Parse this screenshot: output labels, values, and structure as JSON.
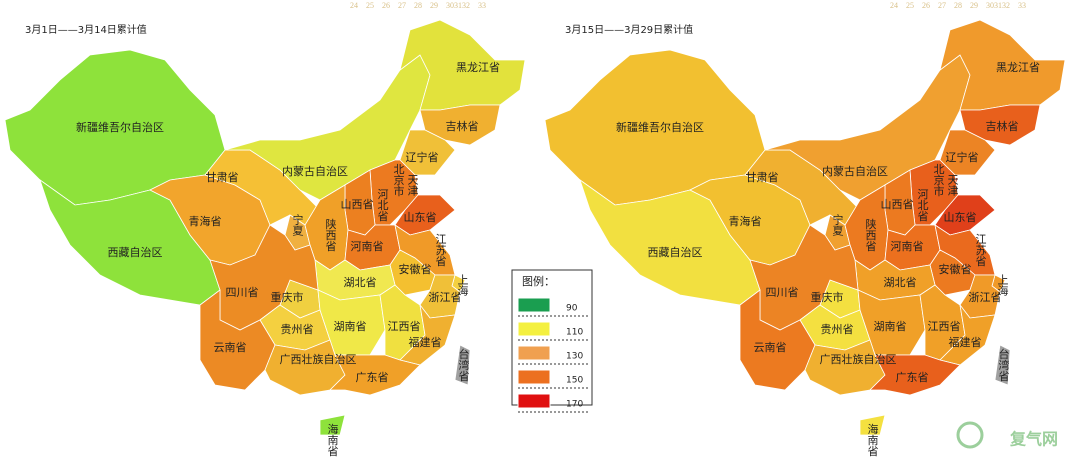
{
  "maps": [
    {
      "title": "3月1日——3月14日累计值",
      "scale_labels": [
        "24",
        "25",
        "26",
        "27",
        "28",
        "29",
        "3031",
        "32",
        "33"
      ],
      "regions": [
        {
          "label": "新疆维吾尔自治区",
          "color": "#8ee23b"
        },
        {
          "label": "西藏自治区",
          "color": "#8ee23b"
        },
        {
          "label": "青海省",
          "color": "#f2a52c"
        },
        {
          "label": "甘肃省",
          "color": "#f5c035"
        },
        {
          "label": "内蒙古自治区",
          "color": "#dfe640"
        },
        {
          "label": "黑龙江省",
          "color": "#e2e23c"
        },
        {
          "label": "吉林省",
          "color": "#f0b030"
        },
        {
          "label": "辽宁省",
          "color": "#f0c038"
        },
        {
          "label": "北京市",
          "color": "#f08a24"
        },
        {
          "label": "天津",
          "color": "#f07a22"
        },
        {
          "label": "河北省",
          "color": "#ec7a20"
        },
        {
          "label": "山东省",
          "color": "#e8601c"
        },
        {
          "label": "山西省",
          "color": "#ec8020"
        },
        {
          "label": "宁夏",
          "color": "#f0b040"
        },
        {
          "label": "陕西省",
          "color": "#f0a028"
        },
        {
          "label": "河南省",
          "color": "#ec7a20"
        },
        {
          "label": "江苏省",
          "color": "#f09a28"
        },
        {
          "label": "安徽省",
          "color": "#f4c030"
        },
        {
          "label": "上海",
          "color": "#f4d040"
        },
        {
          "label": "浙江省",
          "color": "#f0c038"
        },
        {
          "label": "湖北省",
          "color": "#f0e850"
        },
        {
          "label": "重庆市",
          "color": "#f0d040"
        },
        {
          "label": "四川省",
          "color": "#ec8c24"
        },
        {
          "label": "贵州省",
          "color": "#f4d040"
        },
        {
          "label": "湖南省",
          "color": "#f0e848"
        },
        {
          "label": "江西省",
          "color": "#f0e040"
        },
        {
          "label": "福建省",
          "color": "#f0b030"
        },
        {
          "label": "云南省",
          "color": "#ec8a24"
        },
        {
          "label": "广西壮族自治区",
          "color": "#f0b030"
        },
        {
          "label": "广东省",
          "color": "#f0a028"
        },
        {
          "label": "台湾省",
          "color": "#a0a0a0"
        },
        {
          "label": "海南省",
          "color": "#8ee23b"
        }
      ]
    },
    {
      "title": "3月15日——3月29日累计值",
      "scale_labels": [
        "24",
        "25",
        "26",
        "27",
        "28",
        "29",
        "3031",
        "32",
        "33"
      ],
      "regions": [
        {
          "label": "新疆维吾尔自治区",
          "color": "#f2c030"
        },
        {
          "label": "西藏自治区",
          "color": "#f2e040"
        },
        {
          "label": "青海省",
          "color": "#f2c030"
        },
        {
          "label": "甘肃省",
          "color": "#f0b030"
        },
        {
          "label": "内蒙古自治区",
          "color": "#f0a030"
        },
        {
          "label": "黑龙江省",
          "color": "#f09a2c"
        },
        {
          "label": "吉林省",
          "color": "#e8601c"
        },
        {
          "label": "辽宁省",
          "color": "#ec8424"
        },
        {
          "label": "北京市",
          "color": "#e0401a"
        },
        {
          "label": "天津",
          "color": "#e0401a"
        },
        {
          "label": "河北省",
          "color": "#e8601c"
        },
        {
          "label": "山东省",
          "color": "#e0401a"
        },
        {
          "label": "山西省",
          "color": "#ec7a20"
        },
        {
          "label": "宁夏",
          "color": "#f0a030"
        },
        {
          "label": "陕西省",
          "color": "#ec7a20"
        },
        {
          "label": "河南省",
          "color": "#ec701e"
        },
        {
          "label": "江苏省",
          "color": "#ea6a1e"
        },
        {
          "label": "安徽省",
          "color": "#ec7a20"
        },
        {
          "label": "上海",
          "color": "#f09a28"
        },
        {
          "label": "浙江省",
          "color": "#f09a28"
        },
        {
          "label": "湖北省",
          "color": "#f0a028"
        },
        {
          "label": "重庆市",
          "color": "#f4e040"
        },
        {
          "label": "四川省",
          "color": "#ec8424"
        },
        {
          "label": "贵州省",
          "color": "#f4e040"
        },
        {
          "label": "湖南省",
          "color": "#f0a028"
        },
        {
          "label": "江西省",
          "color": "#f0a028"
        },
        {
          "label": "福建省",
          "color": "#f0a028"
        },
        {
          "label": "云南省",
          "color": "#ec7a20"
        },
        {
          "label": "广西壮族自治区",
          "color": "#f0b030"
        },
        {
          "label": "广东省",
          "color": "#e8601c"
        },
        {
          "label": "台湾省",
          "color": "#a0a0a0"
        },
        {
          "label": "海南省",
          "color": "#f4e040"
        }
      ]
    }
  ],
  "legend": {
    "title": "图例：",
    "items": [
      {
        "value": 90,
        "color": "#1a9e50"
      },
      {
        "value": 110,
        "color": "#f4f040"
      },
      {
        "value": 130,
        "color": "#f0a050"
      },
      {
        "value": 150,
        "color": "#ec7020"
      },
      {
        "value": 170,
        "color": "#e01010"
      }
    ]
  },
  "watermark": "复气网"
}
